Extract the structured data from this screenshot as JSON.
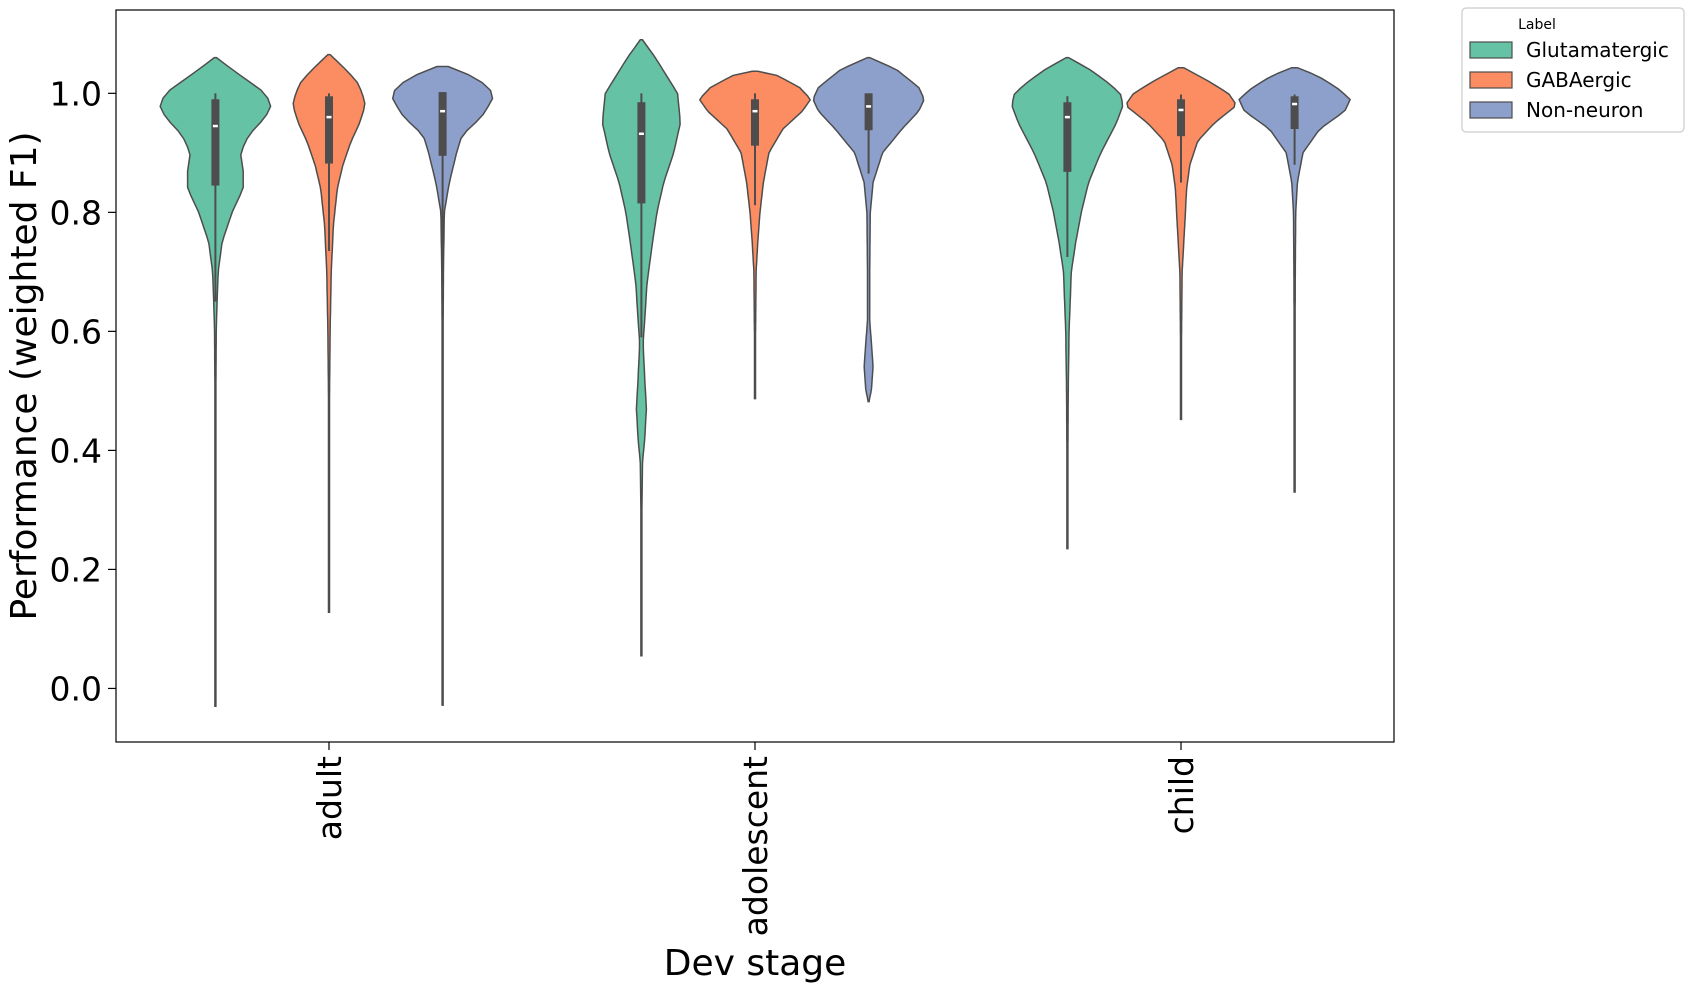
{
  "chart_data": {
    "type": "violin",
    "xlabel": "Dev stage",
    "ylabel": "Performance (weighted F1)",
    "categories": [
      "adult",
      "adolescent",
      "child"
    ],
    "ylim": [
      -0.09,
      1.14
    ],
    "yticks": [
      "0.0",
      "0.2",
      "0.4",
      "0.6",
      "0.8",
      "1.0"
    ],
    "grid": false,
    "legend": {
      "title": "Label",
      "placement": "outside-top-right",
      "entries": [
        "Glutamatergic",
        "GABAergic",
        "Non-neuron"
      ]
    },
    "series": [
      {
        "name": "Glutamatergic",
        "color": "#66c2a5",
        "stats": [
          {
            "min": -0.03,
            "max": 1.06,
            "q1": 0.845,
            "median": 0.945,
            "q3": 0.99,
            "whisker_low": 0.65,
            "whisker_high": 1.0,
            "profile": [
              [
                -0.03,
                0.001
              ],
              [
                0.3,
                0.003
              ],
              [
                0.5,
                0.008
              ],
              [
                0.6,
                0.015
              ],
              [
                0.65,
                0.03
              ],
              [
                0.7,
                0.05
              ],
              [
                0.75,
                0.12
              ],
              [
                0.8,
                0.3
              ],
              [
                0.84,
                0.5
              ],
              [
                0.87,
                0.5
              ],
              [
                0.9,
                0.45
              ],
              [
                0.93,
                0.6
              ],
              [
                0.96,
                0.9
              ],
              [
                0.98,
                1.0
              ],
              [
                1.0,
                0.9
              ],
              [
                1.02,
                0.6
              ],
              [
                1.04,
                0.3
              ],
              [
                1.06,
                0.02
              ]
            ]
          },
          {
            "min": 0.055,
            "max": 1.09,
            "q1": 0.815,
            "median": 0.932,
            "q3": 0.985,
            "whisker_low": 0.59,
            "whisker_high": 1.0,
            "profile": [
              [
                0.055,
                0.001
              ],
              [
                0.3,
                0.008
              ],
              [
                0.38,
                0.02
              ],
              [
                0.42,
                0.06
              ],
              [
                0.47,
                0.09
              ],
              [
                0.52,
                0.06
              ],
              [
                0.58,
                0.03
              ],
              [
                0.62,
                0.06
              ],
              [
                0.68,
                0.1
              ],
              [
                0.75,
                0.2
              ],
              [
                0.8,
                0.28
              ],
              [
                0.85,
                0.4
              ],
              [
                0.9,
                0.58
              ],
              [
                0.95,
                0.7
              ],
              [
                1.0,
                0.65
              ],
              [
                1.03,
                0.45
              ],
              [
                1.06,
                0.25
              ],
              [
                1.09,
                0.02
              ]
            ]
          },
          {
            "min": 0.235,
            "max": 1.06,
            "q1": 0.868,
            "median": 0.96,
            "q3": 0.985,
            "whisker_low": 0.725,
            "whisker_high": 0.995,
            "profile": [
              [
                0.235,
                0.001
              ],
              [
                0.35,
                0.006
              ],
              [
                0.5,
                0.015
              ],
              [
                0.6,
                0.03
              ],
              [
                0.7,
                0.07
              ],
              [
                0.75,
                0.15
              ],
              [
                0.8,
                0.25
              ],
              [
                0.85,
                0.38
              ],
              [
                0.9,
                0.6
              ],
              [
                0.95,
                0.88
              ],
              [
                0.98,
                1.0
              ],
              [
                1.0,
                0.95
              ],
              [
                1.02,
                0.7
              ],
              [
                1.04,
                0.4
              ],
              [
                1.06,
                0.02
              ]
            ]
          }
        ]
      },
      {
        "name": "GABAergic",
        "color": "#fc8d62",
        "stats": [
          {
            "min": 0.128,
            "max": 1.065,
            "q1": 0.882,
            "median": 0.96,
            "q3": 0.995,
            "whisker_low": 0.735,
            "whisker_high": 1.0,
            "profile": [
              [
                0.128,
                0.001
              ],
              [
                0.3,
                0.005
              ],
              [
                0.5,
                0.01
              ],
              [
                0.6,
                0.02
              ],
              [
                0.7,
                0.04
              ],
              [
                0.78,
                0.08
              ],
              [
                0.84,
                0.15
              ],
              [
                0.88,
                0.25
              ],
              [
                0.92,
                0.4
              ],
              [
                0.95,
                0.55
              ],
              [
                0.98,
                0.65
              ],
              [
                1.0,
                0.6
              ],
              [
                1.02,
                0.5
              ],
              [
                1.04,
                0.3
              ],
              [
                1.065,
                0.02
              ]
            ]
          },
          {
            "min": 0.487,
            "max": 1.037,
            "q1": 0.912,
            "median": 0.97,
            "q3": 0.99,
            "whisker_low": 0.812,
            "whisker_high": 1.0,
            "profile": [
              [
                0.487,
                0.001
              ],
              [
                0.6,
                0.01
              ],
              [
                0.7,
                0.02
              ],
              [
                0.75,
                0.05
              ],
              [
                0.8,
                0.09
              ],
              [
                0.85,
                0.15
              ],
              [
                0.9,
                0.25
              ],
              [
                0.94,
                0.5
              ],
              [
                0.97,
                0.85
              ],
              [
                0.99,
                1.0
              ],
              [
                1.01,
                0.8
              ],
              [
                1.03,
                0.4
              ],
              [
                1.037,
                0.05
              ]
            ]
          },
          {
            "min": 0.452,
            "max": 1.043,
            "q1": 0.928,
            "median": 0.972,
            "q3": 0.99,
            "whisker_low": 0.85,
            "whisker_high": 0.998,
            "profile": [
              [
                0.452,
                0.001
              ],
              [
                0.6,
                0.01
              ],
              [
                0.7,
                0.02
              ],
              [
                0.75,
                0.05
              ],
              [
                0.8,
                0.08
              ],
              [
                0.84,
                0.1
              ],
              [
                0.88,
                0.16
              ],
              [
                0.92,
                0.3
              ],
              [
                0.95,
                0.6
              ],
              [
                0.98,
                1.0
              ],
              [
                1.0,
                0.85
              ],
              [
                1.02,
                0.5
              ],
              [
                1.043,
                0.05
              ]
            ]
          }
        ]
      },
      {
        "name": "Non-neuron",
        "color": "#8da0cb",
        "stats": [
          {
            "min": -0.028,
            "max": 1.045,
            "q1": 0.895,
            "median": 0.97,
            "q3": 1.002,
            "whisker_low": 0.55,
            "whisker_high": 1.002,
            "profile": [
              [
                -0.028,
                0.001
              ],
              [
                0.3,
                0.003
              ],
              [
                0.5,
                0.005
              ],
              [
                0.6,
                0.008
              ],
              [
                0.7,
                0.015
              ],
              [
                0.8,
                0.03
              ],
              [
                0.85,
                0.12
              ],
              [
                0.88,
                0.2
              ],
              [
                0.9,
                0.25
              ],
              [
                0.93,
                0.35
              ],
              [
                0.96,
                0.7
              ],
              [
                0.99,
                0.9
              ],
              [
                1.01,
                0.85
              ],
              [
                1.03,
                0.5
              ],
              [
                1.045,
                0.1
              ]
            ]
          },
          {
            "min": 0.482,
            "max": 1.06,
            "q1": 0.938,
            "median": 0.978,
            "q3": 1.0,
            "whisker_low": 0.865,
            "whisker_high": 1.0,
            "profile": [
              [
                0.482,
                0.001
              ],
              [
                0.5,
                0.05
              ],
              [
                0.54,
                0.08
              ],
              [
                0.58,
                0.05
              ],
              [
                0.62,
                0.02
              ],
              [
                0.7,
                0.02
              ],
              [
                0.8,
                0.03
              ],
              [
                0.85,
                0.08
              ],
              [
                0.9,
                0.25
              ],
              [
                0.94,
                0.6
              ],
              [
                0.97,
                0.9
              ],
              [
                0.99,
                1.0
              ],
              [
                1.01,
                0.9
              ],
              [
                1.04,
                0.5
              ],
              [
                1.06,
                0.02
              ]
            ]
          },
          {
            "min": 0.33,
            "max": 1.043,
            "q1": 0.94,
            "median": 0.982,
            "q3": 0.995,
            "whisker_low": 0.88,
            "whisker_high": 0.998,
            "profile": [
              [
                0.33,
                0.001
              ],
              [
                0.5,
                0.005
              ],
              [
                0.6,
                0.008
              ],
              [
                0.7,
                0.012
              ],
              [
                0.8,
                0.02
              ],
              [
                0.85,
                0.05
              ],
              [
                0.9,
                0.15
              ],
              [
                0.94,
                0.45
              ],
              [
                0.97,
                0.9
              ],
              [
                0.99,
                1.0
              ],
              [
                1.01,
                0.75
              ],
              [
                1.03,
                0.4
              ],
              [
                1.043,
                0.05
              ]
            ]
          }
        ]
      }
    ]
  }
}
